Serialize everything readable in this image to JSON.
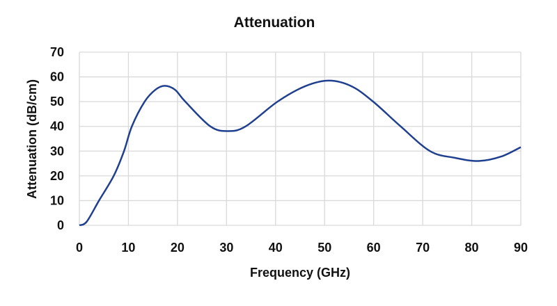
{
  "chart_data": {
    "type": "line",
    "title": "Attenuation",
    "xlabel": "Frequency (GHz)",
    "ylabel": "Attenuation (dB/cm)",
    "xlim": [
      0,
      90
    ],
    "ylim": [
      0,
      70
    ],
    "xticks": [
      0,
      10,
      20,
      30,
      40,
      50,
      60,
      70,
      80,
      90
    ],
    "yticks": [
      0,
      10,
      20,
      30,
      40,
      50,
      60,
      70
    ],
    "grid": true,
    "legend": "none",
    "line_color": "#1f3f8f",
    "series": [
      {
        "x": [
          0,
          1.5,
          4.0,
          7.0,
          9.1,
          10.7,
          13.3,
          15.5,
          17.4,
          19.5,
          21.6,
          26.7,
          30.3,
          33.9,
          40.4,
          46,
          50.9,
          55.5,
          59.9,
          65.5,
          71.5,
          76.5,
          81.4,
          86,
          90
        ],
        "y": [
          0,
          1.5,
          10,
          20,
          30,
          40,
          50,
          54.8,
          56.4,
          54.8,
          50,
          40,
          38.1,
          40,
          50,
          56.2,
          58.5,
          56.2,
          50,
          40,
          30,
          27.3,
          26.0,
          27.8,
          31.6
        ]
      }
    ]
  }
}
